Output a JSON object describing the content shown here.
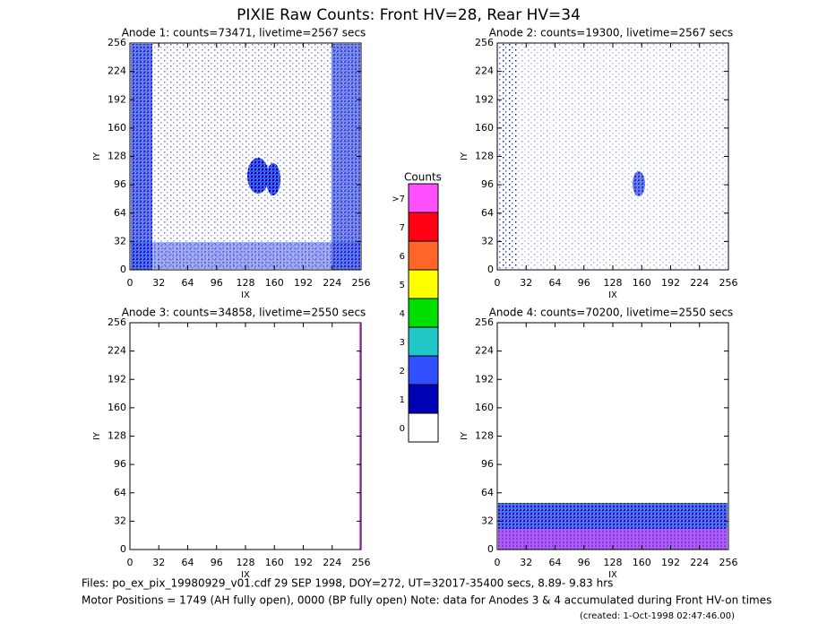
{
  "title": "PIXIE Raw Counts:  Front HV=28, Rear HV=34",
  "chart_data": [
    {
      "type": "heatmap",
      "title": "Anode 1: counts=73471, livetime=2567 secs",
      "x_label": "IX",
      "y_label": "IY",
      "xlim": [
        0,
        256
      ],
      "ylim": [
        0,
        256
      ],
      "xticks": [
        0,
        32,
        64,
        96,
        128,
        160,
        192,
        224,
        256
      ],
      "yticks": [
        0,
        32,
        64,
        96,
        128,
        160,
        192,
        224,
        256
      ]
    },
    {
      "type": "heatmap",
      "title": "Anode 2: counts=19300, livetime=2567 secs",
      "x_label": "IX",
      "y_label": "IY",
      "xlim": [
        0,
        256
      ],
      "ylim": [
        0,
        256
      ],
      "xticks": [
        0,
        32,
        64,
        96,
        128,
        160,
        192,
        224,
        256
      ],
      "yticks": [
        0,
        32,
        64,
        96,
        128,
        160,
        192,
        224,
        256
      ]
    },
    {
      "type": "heatmap",
      "title": "Anode 3: counts=34858, livetime=2550 secs",
      "x_label": "IX",
      "y_label": "IY",
      "xlim": [
        0,
        256
      ],
      "ylim": [
        0,
        256
      ],
      "xticks": [
        0,
        32,
        64,
        96,
        128,
        160,
        192,
        224,
        256
      ],
      "yticks": [
        0,
        32,
        64,
        96,
        128,
        160,
        192,
        224,
        256
      ]
    },
    {
      "type": "heatmap",
      "title": "Anode 4: counts=70200, livetime=2550 secs",
      "x_label": "IX",
      "y_label": "IY",
      "xlim": [
        0,
        256
      ],
      "ylim": [
        0,
        256
      ],
      "xticks": [
        0,
        32,
        64,
        96,
        128,
        160,
        192,
        224,
        256
      ],
      "yticks": [
        0,
        32,
        64,
        96,
        128,
        160,
        192,
        224,
        256
      ]
    }
  ],
  "colorbar": {
    "title": "Counts",
    "levels": [
      {
        "label": "0",
        "color": "#ffffff"
      },
      {
        "label": "1",
        "color": "#0000b4"
      },
      {
        "label": "2",
        "color": "#3050ff"
      },
      {
        "label": "3",
        "color": "#20c8c8"
      },
      {
        "label": "4",
        "color": "#00e000"
      },
      {
        "label": "5",
        "color": "#ffff00"
      },
      {
        "label": "6",
        "color": "#ff6428"
      },
      {
        "label": "7",
        "color": "#ff0014"
      },
      {
        "label": ">7",
        "color": "#ff50ff"
      }
    ]
  },
  "footer": {
    "line1": "Files: po_ex_pix_19980929_v01.cdf    29 SEP 1998, DOY=272, UT=32017-35400 secs,  8.89- 9.83 hrs",
    "line2": "Motor Positions = 1749 (AH fully open), 0000 (BP fully open)    Note: data for Anodes 3 & 4 accumulated during Front HV-on times",
    "created": "(created:  1-Oct-1998 02:47:46.00)"
  }
}
